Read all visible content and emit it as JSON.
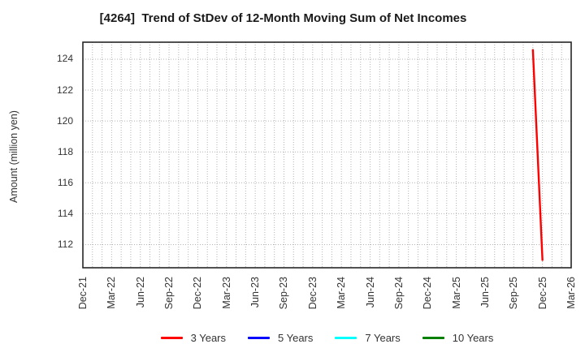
{
  "chart_data": {
    "type": "line",
    "title": "[4264]  Trend of StDev of 12-Month Moving Sum of Net Incomes",
    "ylabel": "Amount (million yen)",
    "x_tick_labels": [
      "Dec-21",
      "Mar-22",
      "Jun-22",
      "Sep-22",
      "Dec-22",
      "Mar-23",
      "Jun-23",
      "Sep-23",
      "Dec-23",
      "Mar-24",
      "Jun-24",
      "Sep-24",
      "Dec-24",
      "Mar-25",
      "Jun-25",
      "Sep-25",
      "Dec-25",
      "Mar-26"
    ],
    "x_total_months": 51,
    "x_tick_step_months": 3,
    "y_ticks": [
      112,
      114,
      116,
      118,
      120,
      122,
      124
    ],
    "ylim": [
      110.5,
      125.1
    ],
    "grid": "dotted",
    "legend_position": "bottom",
    "colors": {
      "grid": "#b4b4b4",
      "axis_border": "#262626",
      "text": "#333333"
    },
    "series": [
      {
        "name": "3 Years",
        "color": "#ff0000",
        "points": [
          {
            "label": "Nov-25",
            "month_index": 47,
            "value": 124.6
          },
          {
            "label": "Dec-25",
            "month_index": 48,
            "value": 111.0
          }
        ]
      },
      {
        "name": "5 Years",
        "color": "#0000ff",
        "points": []
      },
      {
        "name": "7 Years",
        "color": "#00ffff",
        "points": []
      },
      {
        "name": "10 Years",
        "color": "#008000",
        "points": []
      }
    ]
  }
}
